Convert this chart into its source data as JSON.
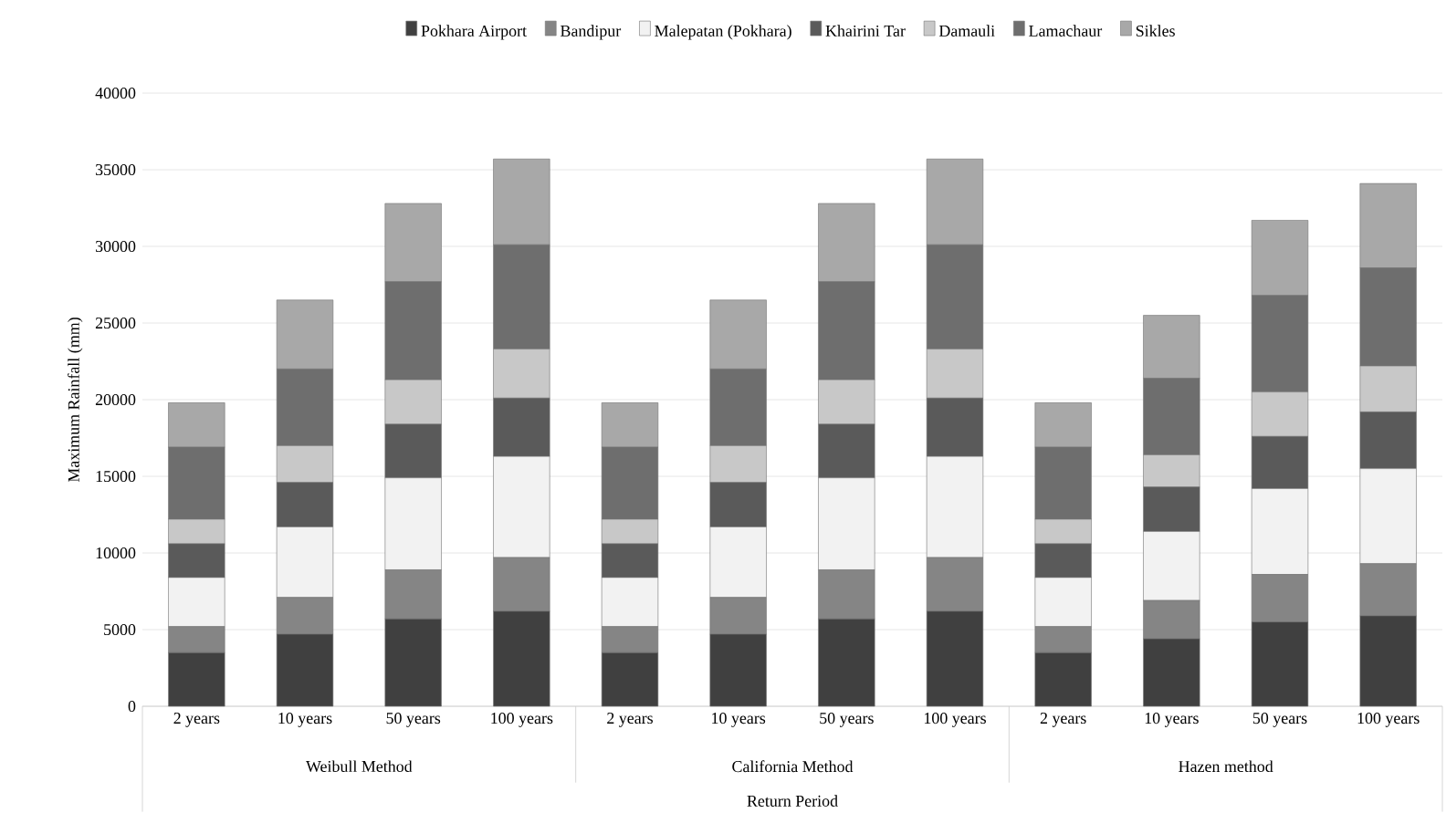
{
  "chart_data": {
    "type": "bar",
    "stacked": true,
    "ylabel": "Maximum Rainfall (mm)",
    "xlabel": "Return Period",
    "categories": [
      "2 years",
      "10 years",
      "50 years",
      "100 years",
      "2 years",
      "10 years",
      "50 years",
      "100 years",
      "2 years",
      "10 years",
      "50 years",
      "100 years"
    ],
    "annotations": [
      "Weibull Method",
      "California Method",
      "Hazen method"
    ],
    "series": [
      {
        "name": "Pokhara Airport",
        "color": "#404040",
        "values": [
          3500,
          4700,
          5700,
          6200,
          3500,
          4700,
          5700,
          6200,
          3500,
          4400,
          5500,
          5900
        ]
      },
      {
        "name": "Bandipur",
        "color": "#858585",
        "values": [
          1700,
          2400,
          3200,
          3500,
          1700,
          2400,
          3200,
          3500,
          1700,
          2500,
          3100,
          3400
        ]
      },
      {
        "name": "Malepatan (Pokhara)",
        "color": "#f2f2f2",
        "values": [
          3200,
          4600,
          6000,
          6600,
          3200,
          4600,
          6000,
          6600,
          3200,
          4500,
          5600,
          6200
        ]
      },
      {
        "name": "Khairini Tar",
        "color": "#5a5a5a",
        "values": [
          2200,
          2900,
          3500,
          3800,
          2200,
          2900,
          3500,
          3800,
          2200,
          2900,
          3400,
          3700
        ]
      },
      {
        "name": "Damauli",
        "color": "#c8c8c8",
        "values": [
          1600,
          2400,
          2900,
          3200,
          1600,
          2400,
          2900,
          3200,
          1600,
          2100,
          2900,
          3000
        ]
      },
      {
        "name": "Lamachaur",
        "color": "#6e6e6e",
        "values": [
          4700,
          5000,
          6400,
          6800,
          4700,
          5000,
          6400,
          6800,
          4700,
          5000,
          6300,
          6400
        ]
      },
      {
        "name": "Sikles",
        "color": "#a8a8a8",
        "values": [
          2900,
          4500,
          5100,
          5600,
          2900,
          4500,
          5100,
          5600,
          2900,
          4100,
          4900,
          5500
        ]
      }
    ],
    "ylim": [
      0,
      40000
    ],
    "yticks": [
      0,
      5000,
      10000,
      15000,
      20000,
      25000,
      30000,
      35000,
      40000
    ],
    "grid": "y",
    "legend": "top"
  }
}
